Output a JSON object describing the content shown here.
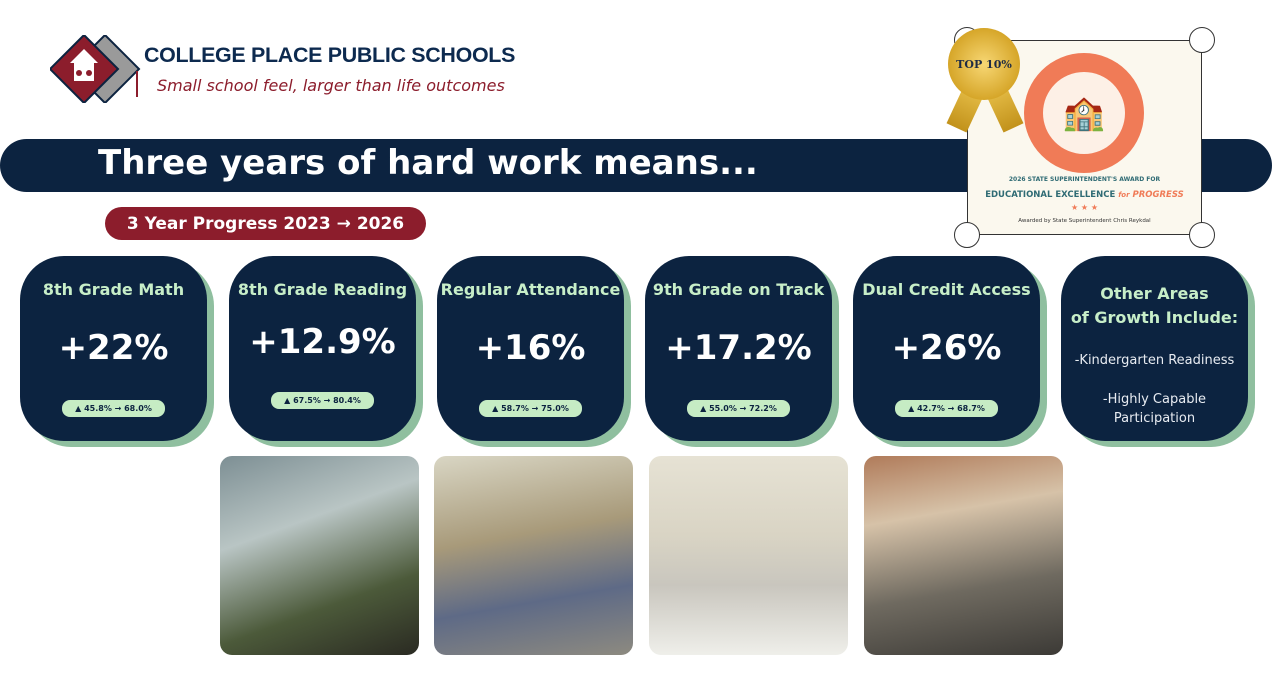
{
  "header": {
    "school_name": "COLLEGE PLACE PUBLIC SCHOOLS",
    "tagline": "Small school feel, larger than life outcomes"
  },
  "banner": {
    "headline": "Three years of hard work means...",
    "progress_pill": "3 Year Progress 2023 → 2026"
  },
  "award": {
    "medal": "TOP 10%",
    "seal_top": "STATE SUPERINTENDENT'S AWARD",
    "seal_bottom": "FOR EDUCATIONAL EXCELLENCE",
    "line1": "2026 STATE SUPERINTENDENT'S AWARD FOR",
    "line2_main": "EDUCATIONAL EXCELLENCE",
    "line2_for": "for",
    "line2_progress": "PROGRESS",
    "stars": "★ ★ ★",
    "line3": "Awarded by State Superintendent Chris Reykdal",
    "colors": {
      "orange": "#f07b57",
      "teal": "#2f6b74"
    }
  },
  "metrics": [
    {
      "title": "8th Grade Math",
      "value": "+22%",
      "change": "▲ 45.8% → 68.0%"
    },
    {
      "title": "8th Grade Reading",
      "value": "+12.9%",
      "change": "▲ 67.5% → 80.4%"
    },
    {
      "title": "Regular Attendance",
      "value": "+16%",
      "change": "▲ 58.7% → 75.0%"
    },
    {
      "title": "9th Grade on Track",
      "value": "+17.2%",
      "change": "▲ 55.0% → 72.2%"
    },
    {
      "title": "Dual Credit Access",
      "value": "+26%",
      "change": "▲ 42.7% → 68.7%"
    }
  ],
  "other": {
    "title1": "Other Areas",
    "title2": "of Growth Include:",
    "item1": "-Kindergarten Readiness",
    "item2a": "-Highly Capable",
    "item2b": "Participation"
  },
  "colors": {
    "navy": "#0c2340",
    "maroon": "#8c1d2c",
    "mint": "#c6ecc4",
    "shadow_green": "#8fbf9f"
  }
}
